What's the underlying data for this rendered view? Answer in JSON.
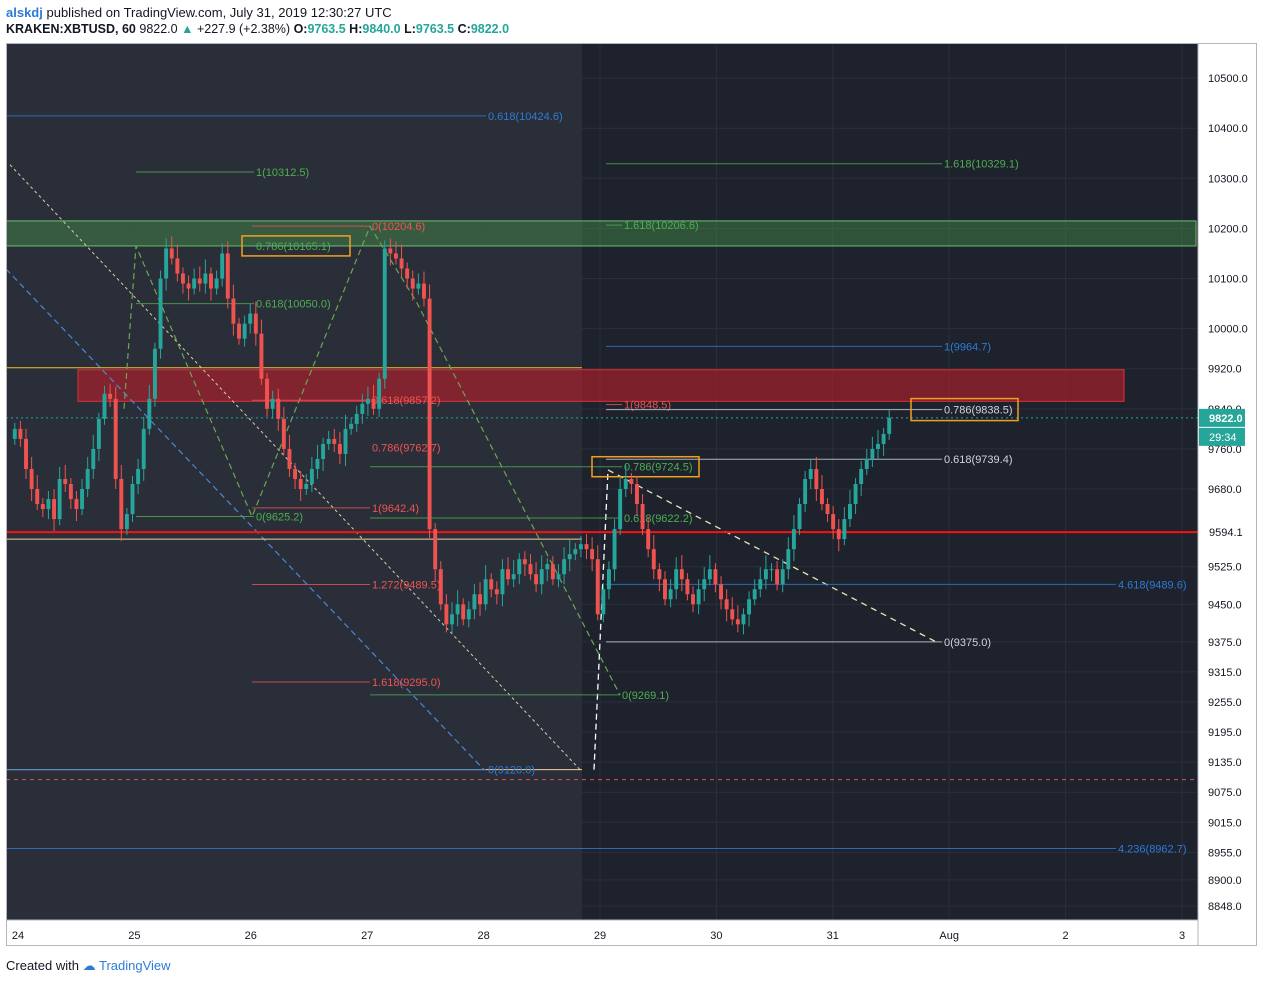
{
  "header": {
    "user": "alskdj",
    "published": "published on TradingView.com, July 31, 2019 12:30:27 UTC",
    "symbol": "KRAKEN:XBTUSD, 60",
    "last": "9822.0",
    "change": "+227.9 (+2.38%)",
    "o_label": "O:",
    "o": "9763.5",
    "h_label": "H:",
    "h": "9840.0",
    "l_label": "L:",
    "l": "9763.5",
    "c_label": "C:",
    "c": "9822.0"
  },
  "footer": {
    "created": "Created with",
    "brand": "TradingView"
  },
  "colors": {
    "bg": "#1e222d",
    "shade": "#2a2e39",
    "grid": "#2b2f3a",
    "up": "#26a69a",
    "down": "#ef5350",
    "green_fib": "#4caf50",
    "red_fib": "#f05350",
    "blue_fib": "#2e7bd6",
    "price_tag": "#26a69a",
    "support": "#ff1010"
  },
  "chart_data": {
    "type": "candlestick",
    "title": "KRAKEN:XBTUSD, 60",
    "xlabel": "",
    "ylabel": "",
    "ylim": [
      8820,
      10570
    ],
    "y_ticks": [
      "10500.0",
      "10400.0",
      "10300.0",
      "10200.0",
      "10100.0",
      "10000.0",
      "9920.0",
      "9840.0",
      "9760.0",
      "9680.0",
      "9525.0",
      "9450.0",
      "9375.0",
      "9315.0",
      "9255.0",
      "9195.0",
      "9135.0",
      "9075.0",
      "9015.0",
      "8955.0",
      "8900.0",
      "8848.0"
    ],
    "x_ticks": [
      "24",
      "25",
      "26",
      "27",
      "28",
      "29",
      "30",
      "31",
      "Aug",
      "2",
      "3"
    ],
    "last_price": "9822.0",
    "countdown": "29:34",
    "support_price": "9594.1",
    "candles_close": [
      9800,
      9780,
      9720,
      9680,
      9650,
      9640,
      9660,
      9620,
      9700,
      9690,
      9660,
      9640,
      9680,
      9720,
      9760,
      9820,
      9870,
      9860,
      9700,
      9600,
      9630,
      9690,
      9720,
      9800,
      9860,
      9960,
      10100,
      10160,
      10140,
      10110,
      10090,
      10080,
      10100,
      10090,
      10110,
      10080,
      10100,
      10150,
      10060,
      10010,
      9980,
      10010,
      10030,
      9990,
      9900,
      9840,
      9860,
      9820,
      9760,
      9720,
      9700,
      9680,
      9690,
      9720,
      9740,
      9770,
      9780,
      9770,
      9750,
      9800,
      9810,
      9830,
      9850,
      9860,
      9840,
      9900,
      10160,
      10150,
      10140,
      10120,
      10100,
      10080,
      10090,
      10060,
      9600,
      9520,
      9450,
      9410,
      9430,
      9450,
      9420,
      9440,
      9470,
      9450,
      9500,
      9480,
      9470,
      9520,
      9500,
      9510,
      9540,
      9530,
      9510,
      9490,
      9520,
      9530,
      9500,
      9510,
      9540,
      9550,
      9560,
      9570,
      9560,
      9540,
      9430,
      9480,
      9520,
      9600,
      9680,
      9700,
      9690,
      9650,
      9600,
      9560,
      9520,
      9500,
      9460,
      9480,
      9520,
      9500,
      9470,
      9450,
      9480,
      9500,
      9520,
      9490,
      9460,
      9440,
      9420,
      9410,
      9430,
      9460,
      9480,
      9500,
      9520,
      9520,
      9490,
      9520,
      9560,
      9600,
      9650,
      9700,
      9720,
      9680,
      9650,
      9630,
      9600,
      9580,
      9620,
      9650,
      9690,
      9720,
      9740,
      9760,
      9770,
      9790,
      9822
    ],
    "fib_levels": [
      {
        "label": "0.618(10424.6)",
        "price": 10424.6,
        "color": "blue"
      },
      {
        "label": "1(10312.5)",
        "price": 10312.5,
        "color": "green"
      },
      {
        "label": "1.618(10329.1)",
        "price": 10329.1,
        "color": "green"
      },
      {
        "label": "0(10204.6)",
        "price": 10204.6,
        "color": "red"
      },
      {
        "label": "1.618(10206.6)",
        "price": 10206.6,
        "color": "green"
      },
      {
        "label": "0.786(10165.1)",
        "price": 10165.1,
        "color": "green"
      },
      {
        "label": "0.618(10050.0)",
        "price": 10050.0,
        "color": "green"
      },
      {
        "label": "1(9964.7)",
        "price": 9964.7,
        "color": "blue"
      },
      {
        "label": "0.618(9857.2)",
        "price": 9857.2,
        "color": "red"
      },
      {
        "label": "1(9848.5)",
        "price": 9848.5,
        "color": "red"
      },
      {
        "label": "0.786(9838.5)",
        "price": 9838.5,
        "color": "white"
      },
      {
        "label": "0.786(9762.7)",
        "price": 9762.7,
        "color": "red"
      },
      {
        "label": "0.618(9739.4)",
        "price": 9739.4,
        "color": "white"
      },
      {
        "label": "0.786(9724.5)",
        "price": 9724.5,
        "color": "green"
      },
      {
        "label": "1(9642.4)",
        "price": 9642.4,
        "color": "red"
      },
      {
        "label": "0(9625.2)",
        "price": 9625.2,
        "color": "green"
      },
      {
        "label": "0.618(9622.2)",
        "price": 9622.2,
        "color": "green"
      },
      {
        "label": "1.272(9489.5)",
        "price": 9489.5,
        "color": "red"
      },
      {
        "label": "4.618(9489.6)",
        "price": 9489.6,
        "color": "blue"
      },
      {
        "label": "0(9375.0)",
        "price": 9375.0,
        "color": "white"
      },
      {
        "label": "1.618(9295.0)",
        "price": 9295.0,
        "color": "red"
      },
      {
        "label": "0(9269.1)",
        "price": 9269.1,
        "color": "green"
      },
      {
        "label": "0(9120.0)",
        "price": 9120.0,
        "color": "blue"
      },
      {
        "label": "4.236(8962.7)",
        "price": 8962.7,
        "color": "blue"
      }
    ],
    "zones": [
      {
        "name": "resistance-zone-green",
        "from": 10165,
        "to": 10215,
        "color": "green"
      },
      {
        "name": "resistance-zone-red",
        "from": 9855,
        "to": 9918,
        "color": "red"
      }
    ],
    "grid": true
  }
}
